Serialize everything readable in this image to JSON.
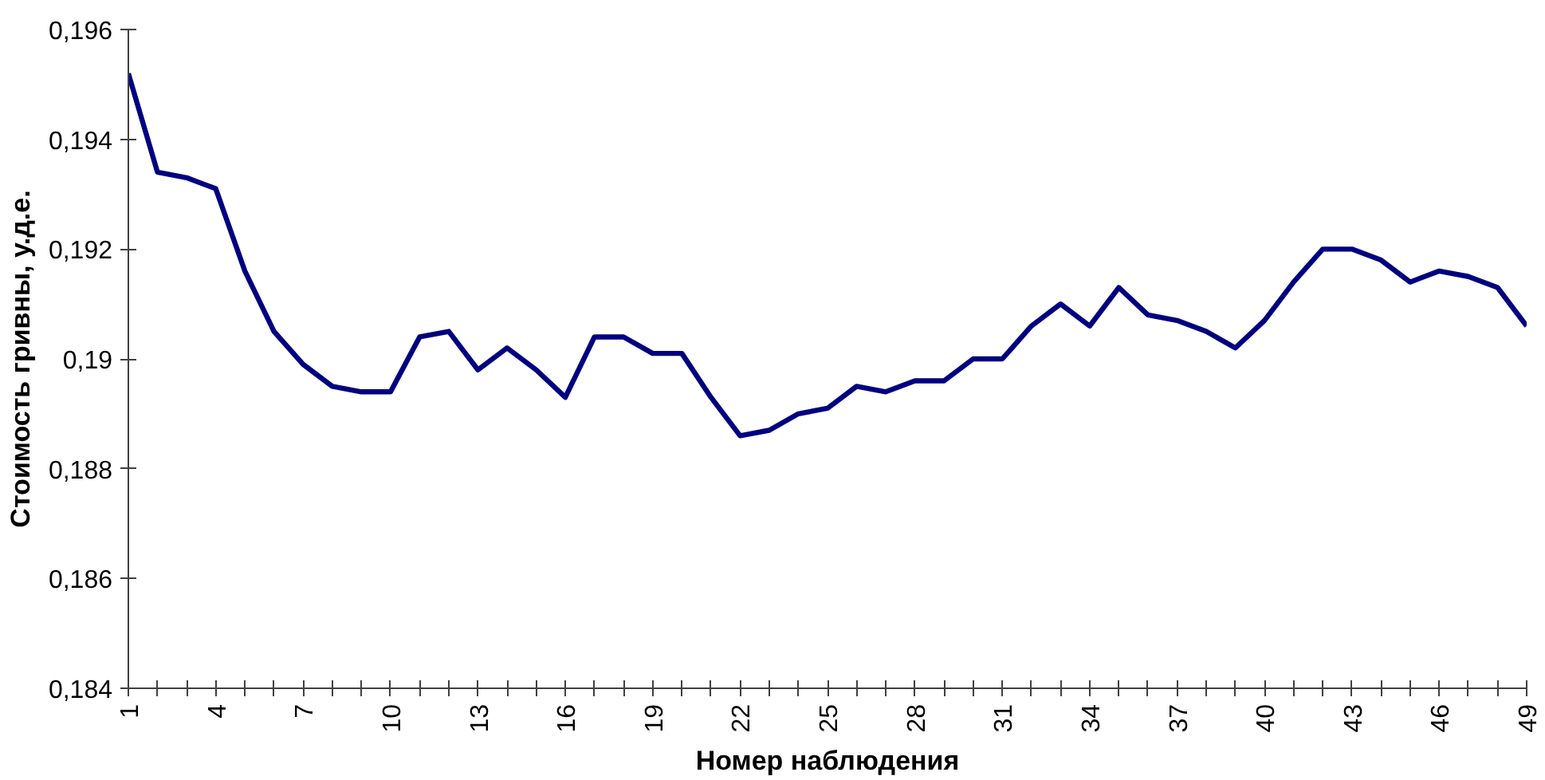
{
  "chart_data": {
    "type": "line",
    "xlabel": "Номер наблюдения",
    "ylabel": "Стоимость гривны, у.д.е.",
    "categories": [
      "1",
      null,
      null,
      "4",
      null,
      null,
      "7",
      null,
      null,
      "10",
      null,
      null,
      "13",
      null,
      null,
      "16",
      null,
      null,
      "19",
      null,
      null,
      "22",
      null,
      null,
      "25",
      null,
      null,
      "28",
      null,
      null,
      "31",
      null,
      null,
      "34",
      null,
      null,
      "37",
      null,
      null,
      "40",
      null,
      null,
      "43",
      null,
      null,
      "46",
      null,
      null,
      "49"
    ],
    "series": [
      {
        "color": "#000080",
        "values": [
          0.1952,
          0.1934,
          0.1933,
          0.1931,
          0.1916,
          0.1905,
          0.1899,
          0.1895,
          0.1894,
          0.1894,
          0.1904,
          0.1905,
          0.1898,
          0.1902,
          0.1898,
          0.1893,
          0.1904,
          0.1904,
          0.1901,
          0.1901,
          0.1893,
          0.1886,
          0.1887,
          0.189,
          0.1891,
          0.1895,
          0.1894,
          0.1896,
          0.1896,
          0.19,
          0.19,
          0.1906,
          0.191,
          0.1906,
          0.1913,
          0.1908,
          0.1907,
          0.1905,
          0.1902,
          0.1907,
          0.1914,
          0.192,
          0.192,
          0.1918,
          0.1914,
          0.1916,
          0.1915,
          0.1913,
          0.1906
        ]
      }
    ],
    "ylim": [
      0.184,
      0.196
    ],
    "yticks": [
      {
        "value": 0.184,
        "label": "0,184"
      },
      {
        "value": 0.186,
        "label": "0,186"
      },
      {
        "value": 0.188,
        "label": "0,188"
      },
      {
        "value": 0.19,
        "label": "0,19"
      },
      {
        "value": 0.192,
        "label": "0,192"
      },
      {
        "value": 0.194,
        "label": "0,194"
      },
      {
        "value": 0.196,
        "label": "0,196"
      }
    ],
    "grid": false,
    "marker": "none",
    "line_style": "solid"
  }
}
